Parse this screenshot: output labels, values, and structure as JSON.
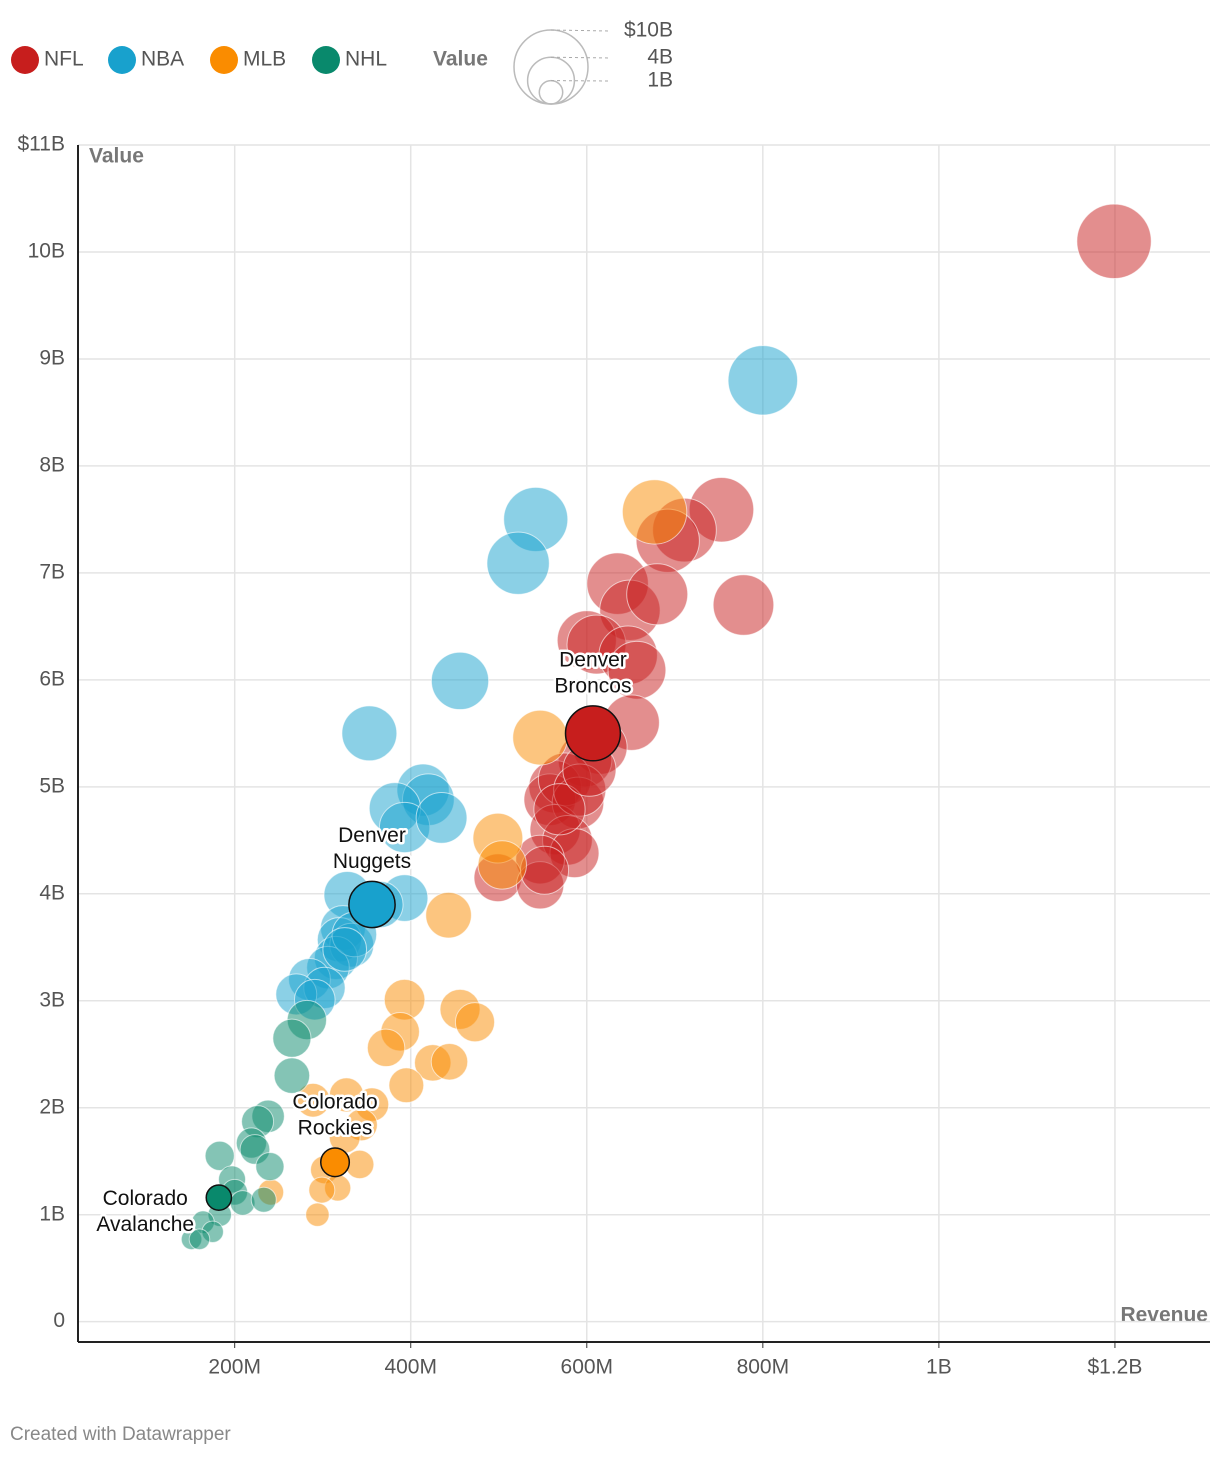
{
  "chart_data": {
    "type": "scatter",
    "x_label": "Revenue",
    "y_label": "Value",
    "xlim": [
      22,
      1308
    ],
    "ylim": [
      -0.19,
      11
    ],
    "xticks": [
      {
        "value": 200,
        "label": "200M"
      },
      {
        "value": 400,
        "label": "400M"
      },
      {
        "value": 600,
        "label": "600M"
      },
      {
        "value": 800,
        "label": "800M"
      },
      {
        "value": 1000,
        "label": "1B"
      },
      {
        "value": 1200,
        "label": "$1.2B"
      }
    ],
    "yticks": [
      0,
      {
        "value": 1,
        "label": "1B"
      },
      {
        "value": 2,
        "label": "2B"
      },
      {
        "value": 3,
        "label": "3B"
      },
      {
        "value": 4,
        "label": "4B"
      },
      {
        "value": 5,
        "label": "5B"
      },
      {
        "value": 6,
        "label": "6B"
      },
      {
        "value": 7,
        "label": "7B"
      },
      {
        "value": 8,
        "label": "8B"
      },
      {
        "value": 9,
        "label": "9B"
      },
      {
        "value": 10,
        "label": "10B"
      },
      {
        "value": 11,
        "label": "$11B"
      }
    ],
    "grid": true,
    "size_legend": {
      "title": "Value",
      "values": [
        {
          "value": 10,
          "label": "$10B"
        },
        {
          "value": 4,
          "label": "4B"
        },
        {
          "value": 1,
          "label": "1B"
        }
      ]
    },
    "series": [
      {
        "name": "NFL",
        "color": "#c71e1d",
        "x": [
          1199,
          753,
          778,
          711,
          692,
          635,
          649,
          680,
          600,
          611,
          647,
          657,
          651,
          615,
          598,
          564,
          558,
          575,
          590,
          564,
          578,
          586,
          547,
          499,
          547,
          552,
          592,
          569,
          603
        ],
        "values": [
          10.1,
          7.59,
          6.7,
          7.4,
          7.3,
          6.9,
          6.65,
          6.8,
          6.37,
          6.33,
          6.23,
          6.09,
          5.6,
          5.37,
          5.25,
          5.0,
          4.88,
          5.07,
          4.85,
          4.6,
          4.5,
          4.38,
          4.32,
          4.15,
          4.08,
          4.22,
          4.97,
          4.79,
          5.16
        ],
        "highlight": {
          "label": [
            "Denver",
            "Broncos"
          ],
          "x": 607,
          "y": 5.5
        }
      },
      {
        "name": "NBA",
        "color": "#18a1cd",
        "x": [
          800,
          542,
          522,
          456,
          353,
          414,
          420,
          382,
          393,
          435,
          328,
          393,
          365,
          323,
          319,
          333,
          315,
          306,
          285,
          302,
          270,
          291,
          336,
          325
        ],
        "values": [
          8.8,
          7.5,
          7.09,
          5.99,
          5.5,
          4.97,
          4.88,
          4.8,
          4.62,
          4.71,
          3.99,
          3.96,
          3.9,
          3.68,
          3.57,
          3.52,
          3.4,
          3.31,
          3.2,
          3.12,
          3.06,
          3.01,
          3.62,
          3.48
        ],
        "highlight": {
          "label": [
            "Denver",
            "Nuggets"
          ],
          "x": 356,
          "y": 3.9
        }
      },
      {
        "name": "MLB",
        "color": "#fa8c00",
        "x": [
          677,
          547,
          499,
          504,
          443,
          393,
          456,
          473,
          388,
          372,
          425,
          444,
          395,
          327,
          289,
          356,
          344,
          325,
          342,
          302,
          317,
          299,
          241,
          294
        ],
        "values": [
          7.57,
          5.46,
          4.52,
          4.27,
          3.8,
          3.01,
          2.92,
          2.8,
          2.71,
          2.56,
          2.42,
          2.43,
          2.21,
          2.12,
          2.07,
          2.03,
          1.84,
          1.72,
          1.47,
          1.42,
          1.25,
          1.23,
          1.21,
          1.0
        ],
        "highlight": {
          "label": [
            "Colorado",
            "Rockies"
          ],
          "x": 314,
          "y": 1.49
        }
      },
      {
        "name": "NHL",
        "color": "#09896c",
        "x": [
          282,
          265,
          265,
          238,
          226,
          219,
          223,
          183,
          240,
          197,
          200,
          209,
          233,
          183,
          164,
          175,
          151,
          160
        ],
        "values": [
          2.82,
          2.65,
          2.3,
          1.92,
          1.87,
          1.67,
          1.61,
          1.55,
          1.45,
          1.33,
          1.21,
          1.11,
          1.14,
          1.0,
          0.93,
          0.84,
          0.77,
          0.77
        ],
        "highlight": {
          "label": [
            "Colorado",
            "Avalanche"
          ],
          "x": 182,
          "y": 1.16
        }
      }
    ],
    "footer": "Created with Datawrapper"
  }
}
